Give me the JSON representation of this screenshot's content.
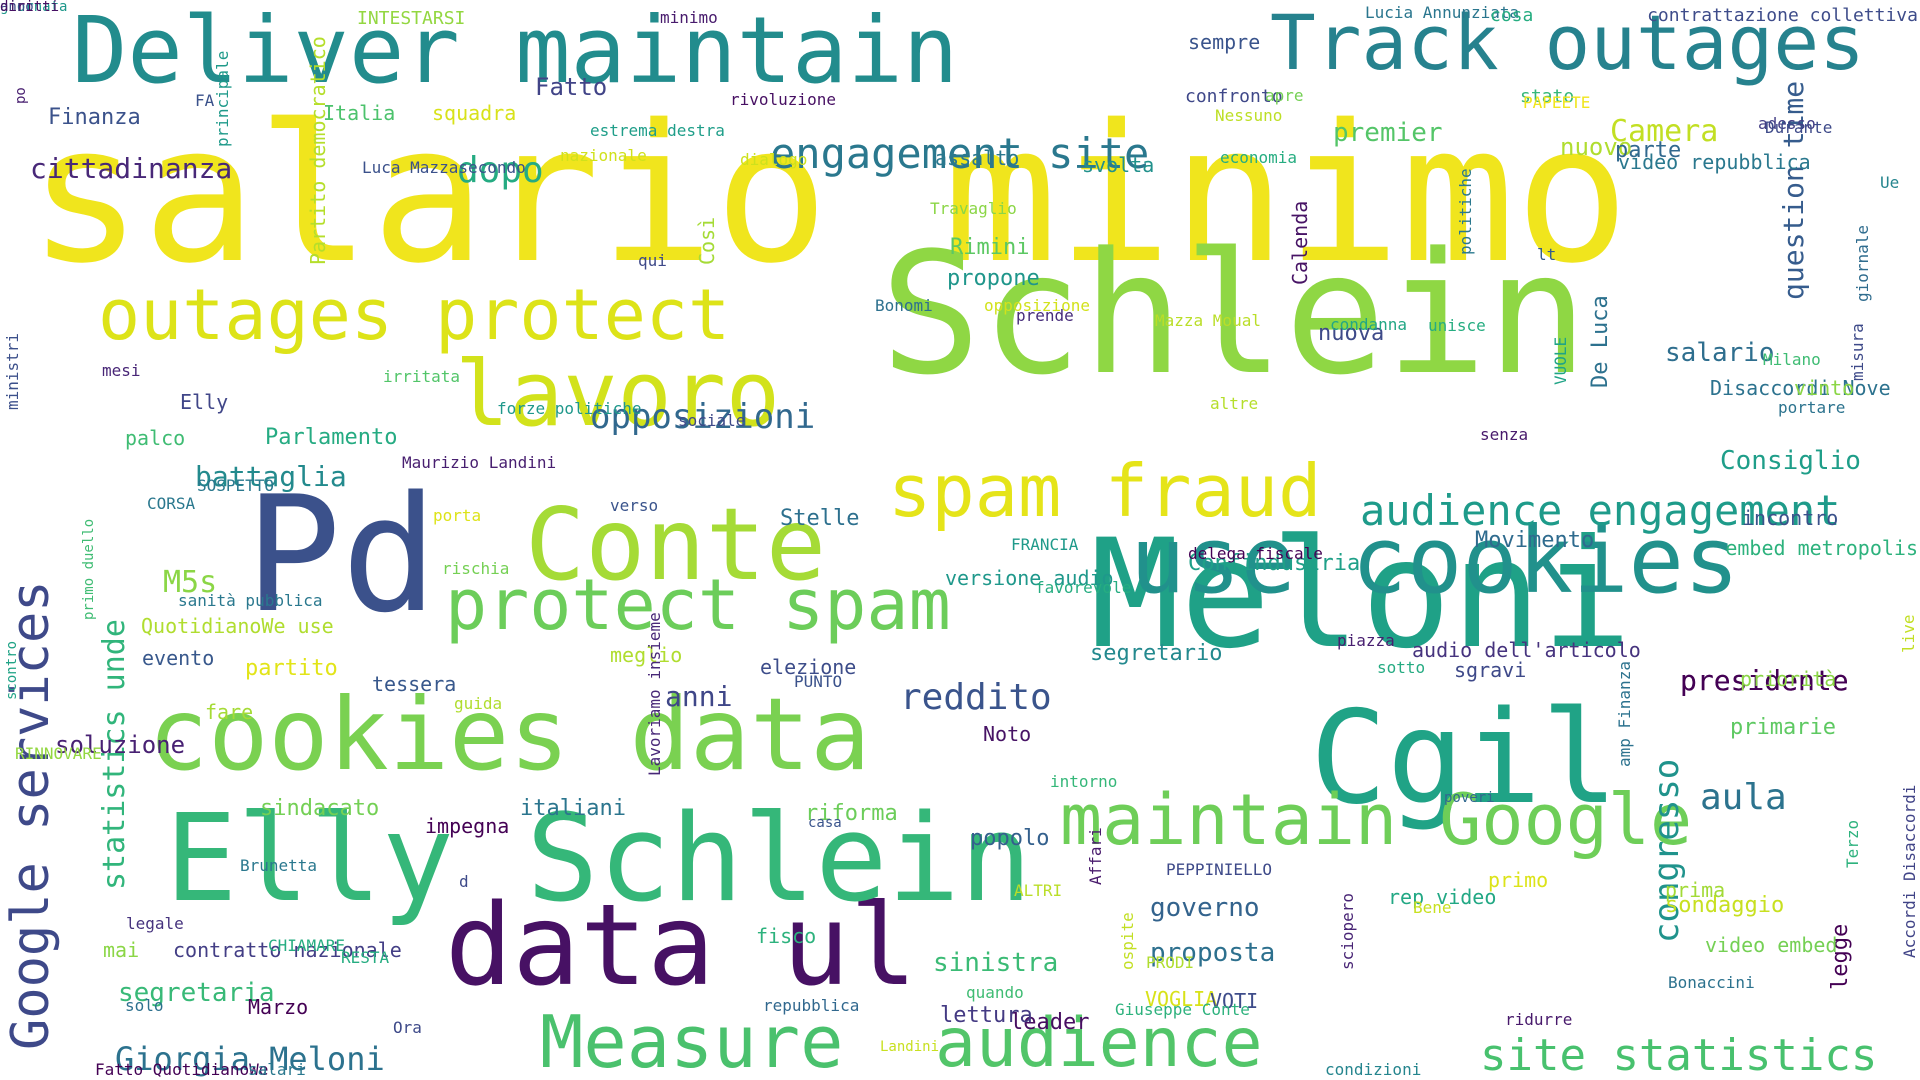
{
  "words": [
    {
      "t": "salario minimo",
      "c": "#f0e51d"
    },
    {
      "t": "Schlein",
      "c": "#8fd744"
    },
    {
      "t": "Meloni",
      "c": "#1fa187"
    },
    {
      "t": "Cgil",
      "c": "#20a386"
    },
    {
      "t": "Pd",
      "c": "#3b518b"
    },
    {
      "t": "data ul",
      "c": "#471164"
    },
    {
      "t": "Elly Schlein",
      "c": "#35b779"
    },
    {
      "t": "Deliver maintain",
      "c": "#228c8d"
    },
    {
      "t": "Track outages",
      "c": "#26828e"
    },
    {
      "t": "cookies data",
      "c": "#7ad151"
    },
    {
      "t": "Conte",
      "c": "#a5db36"
    },
    {
      "t": "lavoro",
      "c": "#d2e21b"
    },
    {
      "t": "use cookies",
      "c": "#21918c"
    },
    {
      "t": "outages protect",
      "c": "#dde318"
    },
    {
      "t": "protect spam",
      "c": "#6ccd5a"
    },
    {
      "t": "spam fraud",
      "c": "#e5e419"
    },
    {
      "t": "maintain Google",
      "c": "#6ece58"
    },
    {
      "t": "Measure",
      "c": "#4ac16d"
    },
    {
      "t": "audience",
      "c": "#52c569"
    },
    {
      "t": "audience engagement",
      "c": "#1e9b8a"
    },
    {
      "t": "Google services",
      "c": "#3e4989"
    },
    {
      "t": "engagement site",
      "c": "#2a788e"
    },
    {
      "t": "Giorgia Meloni",
      "c": "#2c728e"
    },
    {
      "t": "site statistics",
      "c": "#48c16e"
    },
    {
      "t": "statistics unde",
      "c": "#31b57b"
    },
    {
      "t": "opposizioni",
      "c": "#31688e"
    },
    {
      "t": "reddito",
      "c": "#3a548c"
    },
    {
      "t": "congresso",
      "c": "#20938c"
    },
    {
      "t": "question time",
      "c": "#365c8d"
    },
    {
      "t": "Camera",
      "c": "#c2df23"
    },
    {
      "t": "cittadinanza",
      "c": "#482878"
    },
    {
      "t": "dopo",
      "c": "#25ab82"
    },
    {
      "t": "presidente",
      "c": "#440154"
    },
    {
      "t": "governo",
      "c": "#33638d"
    },
    {
      "t": "proposta",
      "c": "#2d708e"
    },
    {
      "t": "segretaria",
      "c": "#38b977"
    },
    {
      "t": "Consiglio",
      "c": "#1f9e89"
    },
    {
      "t": "salario",
      "c": "#2e6e8e"
    },
    {
      "t": "aula",
      "c": "#2c738e"
    },
    {
      "t": "battaglia",
      "c": "#238a8d"
    },
    {
      "t": "anni",
      "c": "#3f4788"
    },
    {
      "t": "M5s",
      "c": "#8bd646"
    },
    {
      "t": "premier",
      "c": "#54c568"
    },
    {
      "t": "nuovo",
      "c": "#b0dd2f"
    },
    {
      "t": "Rimini",
      "c": "#5cc863"
    },
    {
      "t": "propone",
      "c": "#1f968b"
    },
    {
      "t": "Fatto",
      "c": "#414487"
    },
    {
      "t": "sinistra",
      "c": "#3bbb75"
    },
    {
      "t": "Movimento",
      "c": "#2f6b8e"
    },
    {
      "t": "Stelle",
      "c": "#2d708e"
    },
    {
      "t": "Confindustria",
      "c": "#1fa088"
    },
    {
      "t": "presidente",
      "c": "#440154"
    },
    {
      "t": "partito",
      "c": "#e2e418"
    },
    {
      "t": "legge",
      "c": "#440154"
    },
    {
      "t": "riforma",
      "c": "#6ccd5a"
    },
    {
      "t": "leader",
      "c": "#470e61"
    },
    {
      "t": "sondaggio",
      "c": "#c8e020"
    },
    {
      "t": "prima",
      "c": "#a2da37"
    },
    {
      "t": "primarie",
      "c": "#5ec962"
    },
    {
      "t": "lettura",
      "c": "#443a83"
    },
    {
      "t": "rep video",
      "c": "#22a884"
    },
    {
      "t": "primo",
      "c": "#dce319"
    },
    {
      "t": "popolo",
      "c": "#34608d"
    },
    {
      "t": "video embed",
      "c": "#75d054"
    },
    {
      "t": "video repubblica",
      "c": "#2a788e"
    },
    {
      "t": "italiani",
      "c": "#2b758e"
    },
    {
      "t": "sindacato",
      "c": "#74d055"
    },
    {
      "t": "Parlamento",
      "c": "#25ab82"
    },
    {
      "t": "Elly",
      "c": "#404688"
    },
    {
      "t": "parte",
      "c": "#31688e"
    },
    {
      "t": "nuova",
      "c": "#3e4a89"
    },
    {
      "t": "De Luca",
      "c": "#2c718e"
    },
    {
      "t": "segretario",
      "c": "#23898e"
    },
    {
      "t": "versione audio",
      "c": "#1f988b"
    },
    {
      "t": "audio dell'articolo",
      "c": "#46337e"
    },
    {
      "t": "tessera",
      "c": "#38588c"
    },
    {
      "t": "elezione",
      "c": "#3d4d8a"
    },
    {
      "t": "fare",
      "c": "#a5db36"
    },
    {
      "t": "soluzione",
      "c": "#482173"
    },
    {
      "t": "palco",
      "c": "#3fbc73"
    },
    {
      "t": "Partito democratico",
      "c": "#b5de2b"
    },
    {
      "t": "squadra",
      "c": "#d8e219"
    },
    {
      "t": "Italia",
      "c": "#4cc26c"
    },
    {
      "t": "Finanza",
      "c": "#3b528b"
    },
    {
      "t": "Luca Mazzasecondo",
      "c": "#3b518b"
    },
    {
      "t": "INTESTARSI",
      "c": "#93d741"
    },
    {
      "t": "minimo",
      "c": "#481b6d"
    },
    {
      "t": "sempre",
      "c": "#3a548c"
    },
    {
      "t": "Lucia Annunziata",
      "c": "#2a768e"
    },
    {
      "t": "cosa",
      "c": "#26ad81"
    },
    {
      "t": "contrattazione collettiva",
      "c": "#3e4c8a"
    },
    {
      "t": "rivoluzione",
      "c": "#471063"
    },
    {
      "t": "confronto",
      "c": "#3f4889"
    },
    {
      "t": "apre",
      "c": "#75d054"
    },
    {
      "t": "stato",
      "c": "#35b779"
    },
    {
      "t": "FA",
      "c": "#3b528b"
    },
    {
      "t": "principale",
      "c": "#1f9a8a"
    },
    {
      "t": "estrema destra",
      "c": "#1f9e89"
    },
    {
      "t": "nazionale",
      "c": "#d0e11c"
    },
    {
      "t": "dialogo",
      "c": "#cde11d"
    },
    {
      "t": "assalto",
      "c": "#2a788e"
    },
    {
      "t": "svolta",
      "c": "#21918c"
    },
    {
      "t": "economia",
      "c": "#27ad81"
    },
    {
      "t": "Nessuno",
      "c": "#bddf26"
    },
    {
      "t": "PAPEETE",
      "c": "#f1e51d"
    },
    {
      "t": "adesso",
      "c": "#433e85"
    },
    {
      "t": "Durante",
      "c": "#3e4a89"
    },
    {
      "t": "Ue",
      "c": "#25858e"
    },
    {
      "t": "Travaglio",
      "c": "#8bd646"
    },
    {
      "t": "Così",
      "c": "#a5db36"
    },
    {
      "t": "Calenda",
      "c": "#471365"
    },
    {
      "t": "politiche",
      "c": "#2a788e"
    },
    {
      "t": "lt",
      "c": "#365d8d"
    },
    {
      "t": "qui",
      "c": "#3e4989"
    },
    {
      "t": "Bonomi",
      "c": "#2d708e"
    },
    {
      "t": "opposizione",
      "c": "#d2e21b"
    },
    {
      "t": "Mazza Moual",
      "c": "#bade28"
    },
    {
      "t": "prende",
      "c": "#472d7b"
    },
    {
      "t": "condanna",
      "c": "#22a785"
    },
    {
      "t": "unisce",
      "c": "#26ad81"
    },
    {
      "t": "VUOLE",
      "c": "#20a486"
    },
    {
      "t": "misura",
      "c": "#3e4a89"
    },
    {
      "t": "giornale",
      "c": "#2f6c8e"
    },
    {
      "t": "Milano",
      "c": "#3fbc73"
    },
    {
      "t": "mesi",
      "c": "#482677"
    },
    {
      "t": "irritata",
      "c": "#52c569"
    },
    {
      "t": "forze politiche",
      "c": "#1f988b"
    },
    {
      "t": "sociale",
      "c": "#3e4989"
    },
    {
      "t": "altre",
      "c": "#b5de2b"
    },
    {
      "t": "Disaccordi Nove",
      "c": "#2c728e"
    },
    {
      "t": "vinto",
      "c": "#8bd646"
    },
    {
      "t": "portare",
      "c": "#2c738e"
    },
    {
      "t": "senza",
      "c": "#481a6c"
    },
    {
      "t": "ministri",
      "c": "#3c508b"
    },
    {
      "t": "po",
      "c": "#481f70"
    },
    {
      "t": "Maurizio Landini",
      "c": "#481f70"
    },
    {
      "t": "SOSPETTO",
      "c": "#2a788e"
    },
    {
      "t": "CORSA",
      "c": "#2a788e"
    },
    {
      "t": "porta",
      "c": "#dde318"
    },
    {
      "t": "verso",
      "c": "#3a548c"
    },
    {
      "t": "FRANCIA",
      "c": "#1f9a8a"
    },
    {
      "t": "favorevole",
      "c": "#26ad81"
    },
    {
      "t": "delega fiscale",
      "c": "#440154"
    },
    {
      "t": "incontro",
      "c": "#3b528b"
    },
    {
      "t": "embed metropolis",
      "c": "#2db27d"
    },
    {
      "t": "scontro",
      "c": "#20a386"
    },
    {
      "t": "primo duello",
      "c": "#3fbc73"
    },
    {
      "t": "sanità pubblica",
      "c": "#2a788e"
    },
    {
      "t": "QuotidianoWe use",
      "c": "#b0dd2f"
    },
    {
      "t": "evento",
      "c": "#38588c"
    },
    {
      "t": "rischia",
      "c": "#75d054"
    },
    {
      "t": "meglio",
      "c": "#b0dd2f"
    },
    {
      "t": "piazza",
      "c": "#481f70"
    },
    {
      "t": "live",
      "c": "#c2df23"
    },
    {
      "t": "sotto",
      "c": "#25ab82"
    },
    {
      "t": "sgravi",
      "c": "#3e4989"
    },
    {
      "t": "PUNTO",
      "c": "#3b528b"
    },
    {
      "t": "guida",
      "c": "#b0dd2f"
    },
    {
      "t": "priorità",
      "c": "#8bd646"
    },
    {
      "t": "amp Finanza",
      "c": "#2c728e"
    },
    {
      "t": "Terzo",
      "c": "#2db27d"
    },
    {
      "t": "RINNOVARE",
      "c": "#93d741"
    },
    {
      "t": "Lavoriamo insieme",
      "c": "#482878"
    },
    {
      "t": "Noto",
      "c": "#471365"
    },
    {
      "t": "intorno",
      "c": "#35b779"
    },
    {
      "t": "poveri",
      "c": "#31688e"
    },
    {
      "t": "casa",
      "c": "#3a548c"
    },
    {
      "t": "Brunetta",
      "c": "#2a788e"
    },
    {
      "t": "impegna",
      "c": "#440154"
    },
    {
      "t": "d",
      "c": "#3e4a89"
    },
    {
      "t": "legale",
      "c": "#46337e"
    },
    {
      "t": "mai",
      "c": "#8bd646"
    },
    {
      "t": "contratto nazionale",
      "c": "#433e85"
    },
    {
      "t": "fisco",
      "c": "#2db27d"
    },
    {
      "t": "Affari",
      "c": "#481a6c"
    },
    {
      "t": "ALTRI",
      "c": "#bade28"
    },
    {
      "t": "PEPPINIELLO",
      "c": "#3e4a89"
    },
    {
      "t": "Bene",
      "c": "#c8e020"
    },
    {
      "t": "Accordi Disaccordi",
      "c": "#414487"
    },
    {
      "t": "CHIAMARE",
      "c": "#26ad81"
    },
    {
      "t": "RESTA",
      "c": "#26ad81"
    },
    {
      "t": "ospite",
      "c": "#c2df23"
    },
    {
      "t": "PRODI",
      "c": "#b0dd2f"
    },
    {
      "t": "sciopero",
      "c": "#482475"
    },
    {
      "t": "quando",
      "c": "#3fbc73"
    },
    {
      "t": "VOGLIA",
      "c": "#d8e219"
    },
    {
      "t": "VOTI",
      "c": "#3e4c8a"
    },
    {
      "t": "Bonaccini",
      "c": "#2c728e"
    },
    {
      "t": "Marzo",
      "c": "#440154"
    },
    {
      "t": "solo",
      "c": "#2d708e"
    },
    {
      "t": "repubblica",
      "c": "#31688e"
    },
    {
      "t": "Giuseppe Conte",
      "c": "#2db27d"
    },
    {
      "t": "ridurre",
      "c": "#481a6c"
    },
    {
      "t": "Ora",
      "c": "#3e4a89"
    },
    {
      "t": "Fatto QuotidianoWe",
      "c": "#440154"
    },
    {
      "t": "salari",
      "c": "#2a788e"
    },
    {
      "t": "Landini",
      "c": "#c8e020"
    },
    {
      "t": "condizioni",
      "c": "#25858e"
    },
    {
      "t": "giornata",
      "c": "#1f988b"
    },
    {
      "t": "anno",
      "c": "#3e4a89"
    },
    {
      "t": "diritti",
      "c": "#471063"
    }
  ]
}
